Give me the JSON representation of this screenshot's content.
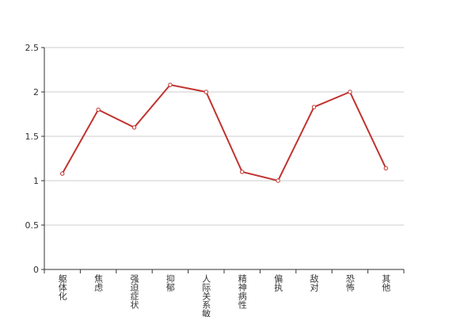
{
  "chart_data": {
    "type": "line",
    "categories": [
      "躯体化",
      "焦虑",
      "强迫症状",
      "抑郁",
      "人际关系敏感",
      "精神病性",
      "偏执",
      "敌对",
      "恐怖",
      "其他"
    ],
    "series": [
      {
        "color": "#c0332f",
        "values": [
          1.08,
          1.8,
          1.6,
          2.08,
          2.0,
          1.1,
          1.0,
          1.83,
          2.0,
          1.14
        ]
      }
    ],
    "ylim": [
      0,
      2.5
    ],
    "yticks": [
      0,
      0.5,
      1,
      1.5,
      2,
      2.5
    ],
    "grid": true
  }
}
